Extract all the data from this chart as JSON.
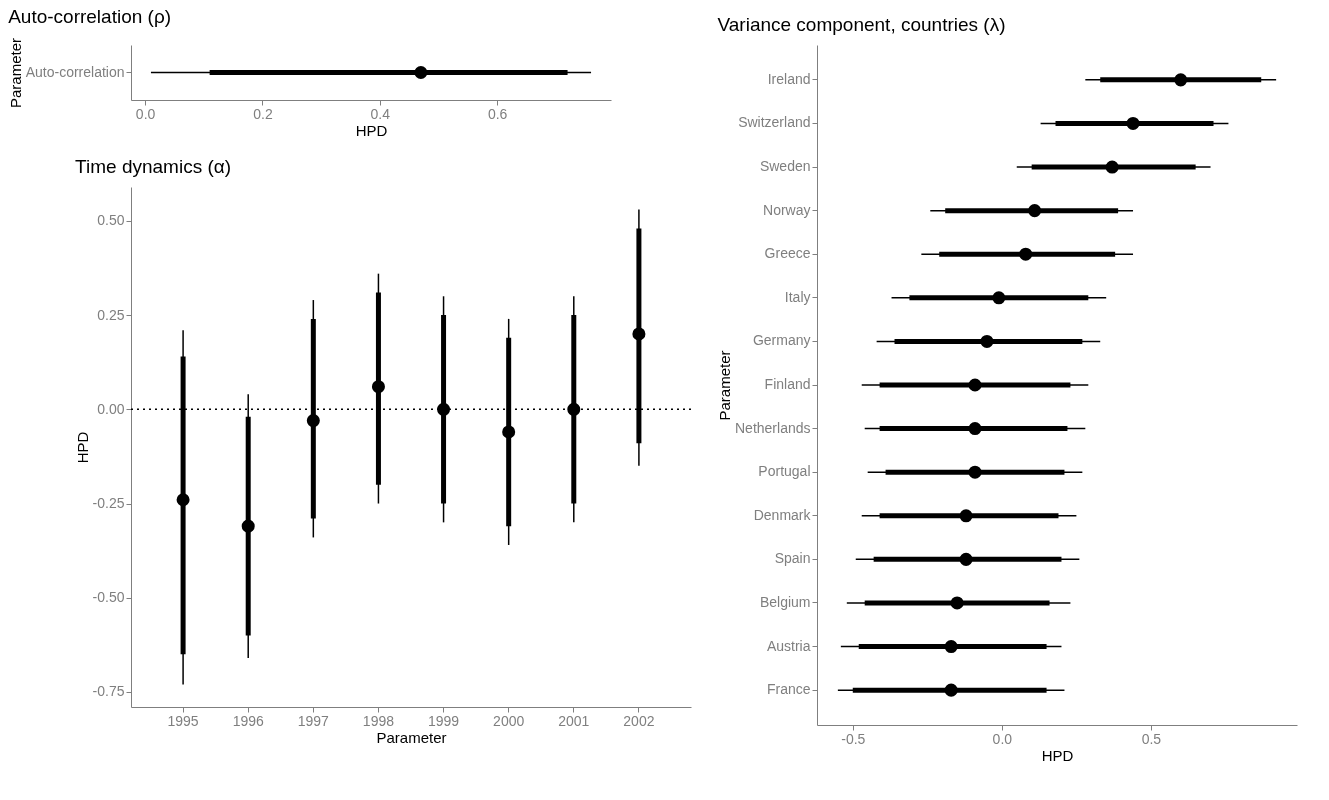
{
  "chart_data": [
    {
      "type": "box",
      "title": "Auto-correlation (ρ)",
      "xlabel": "HPD",
      "ylabel": "Parameter",
      "orientation": "horizontal",
      "color": "#000000",
      "categories": [
        "Auto-correlation"
      ],
      "boxes": [
        {
          "low": 0.01,
          "q1": 0.11,
          "median": 0.47,
          "q3": 0.72,
          "high": 0.76
        }
      ],
      "xlim": [
        -0.024,
        0.794
      ],
      "xticks": [
        {
          "value": 0,
          "label": "0.0"
        },
        {
          "value": 0.2,
          "label": "0.2"
        },
        {
          "value": 0.4,
          "label": "0.4"
        },
        {
          "value": 0.6,
          "label": "0.6"
        }
      ]
    },
    {
      "type": "box",
      "title": "Time dynamics (α)",
      "xlabel": "Parameter",
      "ylabel": "HPD",
      "color": "#000000",
      "categories": [
        "1995",
        "1996",
        "1997",
        "1998",
        "1999",
        "2000",
        "2001",
        "2002"
      ],
      "boxes": [
        {
          "low": -0.73,
          "q1": -0.65,
          "median": -0.24,
          "q3": 0.14,
          "high": 0.21
        },
        {
          "low": -0.66,
          "q1": -0.6,
          "median": -0.31,
          "q3": -0.02,
          "high": 0.04
        },
        {
          "low": -0.34,
          "q1": -0.29,
          "median": -0.03,
          "q3": 0.24,
          "high": 0.29
        },
        {
          "low": -0.25,
          "q1": -0.2,
          "median": 0.06,
          "q3": 0.31,
          "high": 0.36
        },
        {
          "low": -0.3,
          "q1": -0.25,
          "median": 0.0,
          "q3": 0.25,
          "high": 0.3
        },
        {
          "low": -0.36,
          "q1": -0.31,
          "median": -0.06,
          "q3": 0.19,
          "high": 0.24
        },
        {
          "low": -0.3,
          "q1": -0.25,
          "median": 0.0,
          "q3": 0.25,
          "high": 0.3
        },
        {
          "low": -0.15,
          "q1": -0.09,
          "median": 0.2,
          "q3": 0.48,
          "high": 0.53
        }
      ],
      "ylim": [
        -0.79,
        0.59
      ],
      "yticks": [
        {
          "value": -0.75,
          "label": "-0.75"
        },
        {
          "value": -0.5,
          "label": "-0.50"
        },
        {
          "value": -0.25,
          "label": "-0.25"
        },
        {
          "value": 0,
          "label": "0.00"
        },
        {
          "value": 0.25,
          "label": "0.25"
        },
        {
          "value": 0.5,
          "label": "0.50"
        }
      ],
      "ref_lines": [
        {
          "axis": "y",
          "value": 0,
          "line_style": "dotted",
          "color": "#000000"
        }
      ]
    },
    {
      "type": "box",
      "title": "Variance component, countries (λ)",
      "xlabel": "HPD",
      "ylabel": "Parameter",
      "orientation": "horizontal",
      "color": "#000000",
      "categories": [
        "Ireland",
        "Switzerland",
        "Sweden",
        "Norway",
        "Greece",
        "Italy",
        "Germany",
        "Finland",
        "Netherlands",
        "Portugal",
        "Denmark",
        "Spain",
        "Belgium",
        "Austria",
        "France"
      ],
      "boxes": [
        {
          "low": 0.28,
          "q1": 0.33,
          "median": 0.6,
          "q3": 0.87,
          "high": 0.92
        },
        {
          "low": 0.13,
          "q1": 0.18,
          "median": 0.44,
          "q3": 0.71,
          "high": 0.76
        },
        {
          "low": 0.05,
          "q1": 0.1,
          "median": 0.37,
          "q3": 0.65,
          "high": 0.7
        },
        {
          "low": -0.24,
          "q1": -0.19,
          "median": 0.11,
          "q3": 0.39,
          "high": 0.44
        },
        {
          "low": -0.27,
          "q1": -0.21,
          "median": 0.08,
          "q3": 0.38,
          "high": 0.44
        },
        {
          "low": -0.37,
          "q1": -0.31,
          "median": -0.01,
          "q3": 0.29,
          "high": 0.35
        },
        {
          "low": -0.42,
          "q1": -0.36,
          "median": -0.05,
          "q3": 0.27,
          "high": 0.33
        },
        {
          "low": -0.47,
          "q1": -0.41,
          "median": -0.09,
          "q3": 0.23,
          "high": 0.29
        },
        {
          "low": -0.46,
          "q1": -0.41,
          "median": -0.09,
          "q3": 0.22,
          "high": 0.28
        },
        {
          "low": -0.45,
          "q1": -0.39,
          "median": -0.09,
          "q3": 0.21,
          "high": 0.27
        },
        {
          "low": -0.47,
          "q1": -0.41,
          "median": -0.12,
          "q3": 0.19,
          "high": 0.25
        },
        {
          "low": -0.49,
          "q1": -0.43,
          "median": -0.12,
          "q3": 0.2,
          "high": 0.26
        },
        {
          "low": -0.52,
          "q1": -0.46,
          "median": -0.15,
          "q3": 0.16,
          "high": 0.23
        },
        {
          "low": -0.54,
          "q1": -0.48,
          "median": -0.17,
          "q3": 0.15,
          "high": 0.2
        },
        {
          "low": -0.55,
          "q1": -0.5,
          "median": -0.17,
          "q3": 0.15,
          "high": 0.21
        }
      ],
      "xlim": [
        -0.62,
        0.99
      ],
      "xticks": [
        {
          "value": -0.5,
          "label": "-0.5"
        },
        {
          "value": 0,
          "label": "0.0"
        },
        {
          "value": 0.5,
          "label": "0.5"
        }
      ]
    }
  ]
}
